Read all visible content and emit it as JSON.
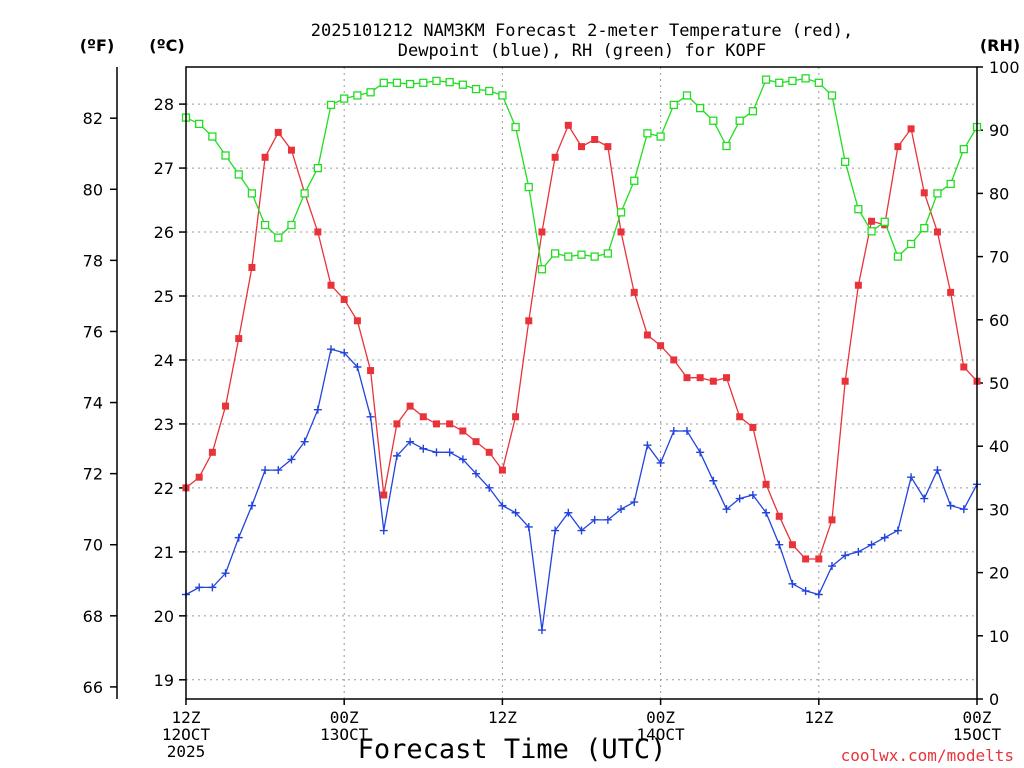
{
  "chart_data": {
    "type": "line",
    "title_line1": "2025101212 NAM3KM Forecast 2-meter Temperature (red),",
    "title_line2": "Dewpoint (blue), RH (green) for KOPF",
    "xlabel": "Forecast Time (UTC)",
    "credit": "coolwx.com/modelts",
    "unit_f": "(ºF)",
    "unit_c": "(ºC)",
    "unit_rh": "(RH)",
    "colors": {
      "temperature": "#e8333a",
      "dewpoint": "#2244dd",
      "rh": "#22dd22",
      "credit": "#e8333a"
    },
    "x": {
      "start_hour": 0,
      "end_hour": 60,
      "step_hours": 1
    },
    "x_ticks": [
      {
        "hour": 0,
        "lines": [
          "12Z",
          "12OCT",
          "2025"
        ]
      },
      {
        "hour": 12,
        "lines": [
          "00Z",
          "13OCT"
        ]
      },
      {
        "hour": 24,
        "lines": [
          "12Z"
        ]
      },
      {
        "hour": 36,
        "lines": [
          "00Z",
          "14OCT"
        ]
      },
      {
        "hour": 48,
        "lines": [
          "12Z"
        ]
      },
      {
        "hour": 60,
        "lines": [
          "00Z",
          "15OCT"
        ]
      }
    ],
    "left_f_axis": {
      "min": 65.66,
      "max": 83.44,
      "ticks": [
        "66",
        "68",
        "70",
        "72",
        "74",
        "76",
        "78",
        "80",
        "82"
      ]
    },
    "left_c_axis": {
      "min": 18.7,
      "max": 28.58,
      "ticks": [
        "19",
        "20",
        "21",
        "22",
        "23",
        "24",
        "25",
        "26",
        "27",
        "28"
      ]
    },
    "right_rh_axis": {
      "min": 0,
      "max": 100,
      "ticks": [
        "0",
        "10",
        "20",
        "30",
        "40",
        "50",
        "60",
        "70",
        "80",
        "90",
        "100"
      ]
    },
    "series": [
      {
        "name": "Temperature",
        "unit": "F",
        "marker": "filled-square",
        "values": [
          71.6,
          71.9,
          72.6,
          73.9,
          75.8,
          77.8,
          80.9,
          81.6,
          81.1,
          79.9,
          78.8,
          77.3,
          76.9,
          76.3,
          74.9,
          71.4,
          73.4,
          73.9,
          73.6,
          73.4,
          73.4,
          73.2,
          72.9,
          72.6,
          72.1,
          73.6,
          76.3,
          78.8,
          80.9,
          81.8,
          81.2,
          81.4,
          81.2,
          78.8,
          77.1,
          75.9,
          75.6,
          75.2,
          74.7,
          74.7,
          74.6,
          74.7,
          73.6,
          73.3,
          71.7,
          70.8,
          70.0,
          69.6,
          69.6,
          70.7,
          74.6,
          77.3,
          79.1,
          79.0,
          81.2,
          81.7,
          79.9,
          78.8,
          77.1,
          75.0,
          74.6
        ]
      },
      {
        "name": "Dewpoint",
        "unit": "F",
        "marker": "plus",
        "values": [
          68.6,
          68.8,
          68.8,
          69.2,
          70.2,
          71.1,
          72.1,
          72.1,
          72.4,
          72.9,
          73.8,
          75.5,
          75.4,
          75.0,
          73.6,
          70.4,
          72.5,
          72.9,
          72.7,
          72.6,
          72.6,
          72.4,
          72.0,
          71.6,
          71.1,
          70.9,
          70.5,
          67.6,
          70.4,
          70.9,
          70.4,
          70.7,
          70.7,
          71.0,
          71.2,
          72.8,
          72.3,
          73.2,
          73.2,
          72.6,
          71.8,
          71.0,
          71.3,
          71.4,
          70.9,
          70.0,
          68.9,
          68.7,
          68.6,
          69.4,
          69.7,
          69.8,
          70.0,
          70.2,
          70.4,
          71.9,
          71.3,
          72.1,
          71.1,
          71.0,
          71.7
        ]
      },
      {
        "name": "RH",
        "unit": "%",
        "marker": "open-square",
        "values": [
          92,
          91,
          89,
          86,
          83,
          80,
          75,
          73,
          75,
          80,
          84,
          94,
          95,
          95.5,
          96,
          97.5,
          97.5,
          97.3,
          97.5,
          97.8,
          97.6,
          97.2,
          96.5,
          96.2,
          95.5,
          90.5,
          81,
          68,
          70.5,
          70,
          70.3,
          70,
          70.5,
          77,
          82,
          89.5,
          89,
          94,
          95.5,
          93.5,
          91.5,
          87.5,
          91.5,
          93,
          98,
          97.5,
          97.8,
          98.2,
          97.5,
          95.5,
          85,
          77.5,
          74,
          75.5,
          70,
          72,
          74.5,
          80,
          81.5,
          87,
          90.5
        ]
      }
    ]
  }
}
